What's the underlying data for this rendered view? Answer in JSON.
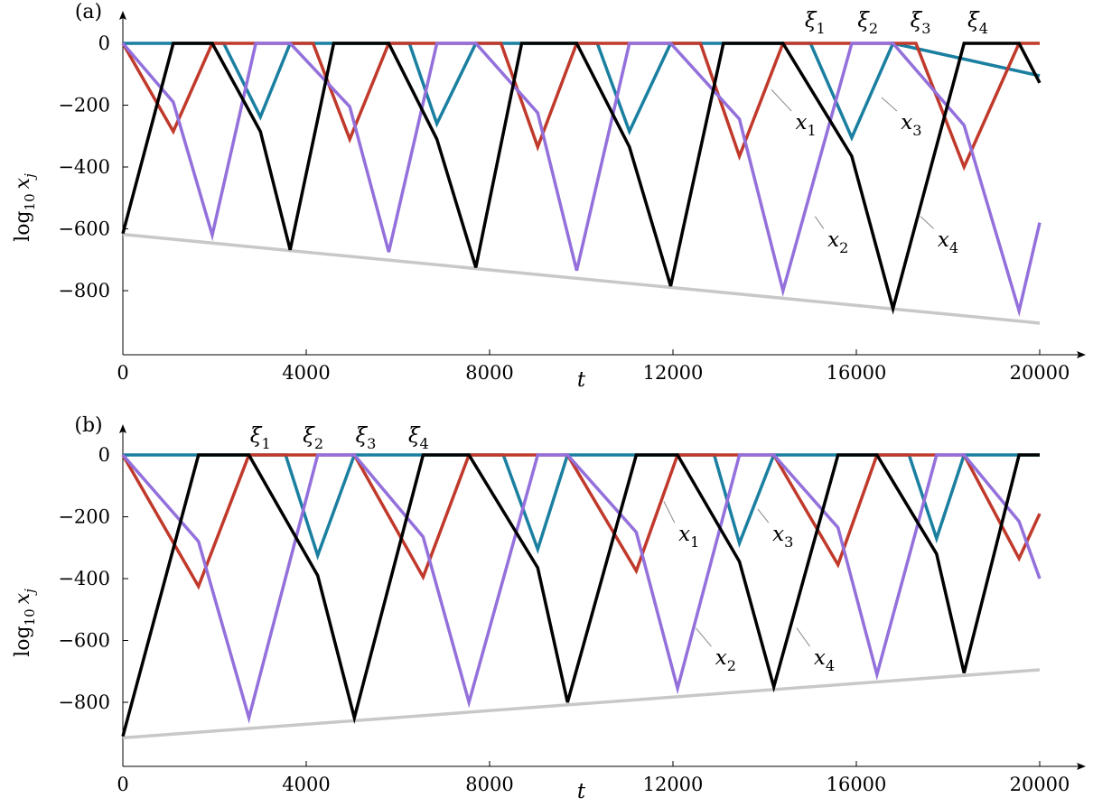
{
  "chart_data": [
    {
      "type": "line",
      "panel_label": "(a)",
      "xlabel": "t",
      "ylabel": "log10 x_j",
      "ylabel_parts": {
        "base": "log",
        "sub": "10",
        "var": "x",
        "varsub": "j"
      },
      "xlim": [
        0,
        20000
      ],
      "ylim": [
        -1000,
        50
      ],
      "xticks": [
        0,
        4000,
        8000,
        12000,
        16000,
        20000
      ],
      "yticks": [
        0,
        -200,
        -400,
        -600,
        -800
      ],
      "ytick_labels": [
        "0",
        "−200",
        "−400",
        "−600",
        "−800"
      ],
      "top_labels": [
        {
          "text": "ξ",
          "sub": "1",
          "x": 15100
        },
        {
          "text": "ξ",
          "sub": "2",
          "x": 16250
        },
        {
          "text": "ξ",
          "sub": "3",
          "x": 17400
        },
        {
          "text": "ξ",
          "sub": "4",
          "x": 18650
        }
      ],
      "annotations": [
        {
          "text": "x",
          "sub": "1",
          "at": [
            14150,
            -150
          ],
          "label": [
            14900,
            -260
          ]
        },
        {
          "text": "x",
          "sub": "3",
          "at": [
            16550,
            -175
          ],
          "label": [
            17200,
            -260
          ]
        },
        {
          "text": "x",
          "sub": "2",
          "at": [
            15100,
            -560
          ],
          "label": [
            15600,
            -640
          ]
        },
        {
          "text": "x",
          "sub": "4",
          "at": [
            17400,
            -560
          ],
          "label": [
            18000,
            -640
          ]
        }
      ],
      "series": [
        {
          "name": "x1",
          "color": "#c0392b",
          "x": [
            0,
            1100,
            1950,
            4150,
            4950,
            5800,
            8250,
            9050,
            9900,
            12600,
            13450,
            14400,
            17300,
            18350,
            19550,
            20000
          ],
          "y": [
            0,
            -285,
            0,
            0,
            -310,
            0,
            0,
            -335,
            0,
            0,
            -365,
            0,
            0,
            -400,
            0,
            0
          ]
        },
        {
          "name": "x2",
          "color": "#9370db",
          "x": [
            0,
            1100,
            1950,
            2900,
            3650,
            4950,
            5800,
            6850,
            7700,
            9050,
            9900,
            11050,
            11950,
            13450,
            14400,
            15900,
            16800,
            18350,
            19550,
            20000
          ],
          "y": [
            0,
            -190,
            -620,
            0,
            0,
            -205,
            -675,
            0,
            0,
            -225,
            -735,
            0,
            0,
            -245,
            -800,
            0,
            0,
            -265,
            -865,
            -580
          ]
        },
        {
          "name": "x3",
          "color": "#1a7fa0",
          "x": [
            0,
            2200,
            3000,
            3650,
            6250,
            6850,
            7700,
            10350,
            11050,
            11950,
            15000,
            15900,
            16800,
            20000
          ],
          "y": [
            0,
            0,
            -238,
            0,
            0,
            -260,
            0,
            0,
            -285,
            0,
            0,
            -305,
            0,
            -105
          ]
        },
        {
          "name": "x4",
          "color": "#000000",
          "x": [
            0,
            1100,
            1950,
            3000,
            3650,
            4600,
            5800,
            6850,
            7700,
            8700,
            9900,
            11050,
            11950,
            13100,
            14400,
            15900,
            16800,
            18350,
            19550,
            20000
          ],
          "y": [
            -615,
            0,
            0,
            -285,
            -668,
            0,
            0,
            -310,
            -725,
            0,
            0,
            -335,
            -785,
            0,
            0,
            -365,
            -858,
            0,
            0,
            -128
          ]
        }
      ],
      "envelope": {
        "color": "#c8c8c8",
        "x": [
          0,
          20000
        ],
        "y": [
          -618,
          -905
        ]
      }
    },
    {
      "type": "line",
      "panel_label": "(b)",
      "xlabel": "t",
      "ylabel": "log10 x_j",
      "ylabel_parts": {
        "base": "log",
        "sub": "10",
        "var": "x",
        "varsub": "j"
      },
      "xlim": [
        0,
        20000
      ],
      "ylim": [
        -1000,
        50
      ],
      "xticks": [
        0,
        4000,
        8000,
        12000,
        16000,
        20000
      ],
      "yticks": [
        0,
        -200,
        -400,
        -600,
        -800
      ],
      "ytick_labels": [
        "0",
        "−200",
        "−400",
        "−600",
        "−800"
      ],
      "top_labels": [
        {
          "text": "ξ",
          "sub": "1",
          "x": 3000
        },
        {
          "text": "ξ",
          "sub": "2",
          "x": 4150
        },
        {
          "text": "ξ",
          "sub": "3",
          "x": 5300
        },
        {
          "text": "ξ",
          "sub": "4",
          "x": 6450
        }
      ],
      "annotations": [
        {
          "text": "x",
          "sub": "1",
          "at": [
            11800,
            -150
          ],
          "label": [
            12350,
            -260
          ]
        },
        {
          "text": "x",
          "sub": "3",
          "at": [
            13850,
            -175
          ],
          "label": [
            14400,
            -260
          ]
        },
        {
          "text": "x",
          "sub": "2",
          "at": [
            12500,
            -560
          ],
          "label": [
            13150,
            -660
          ]
        },
        {
          "text": "x",
          "sub": "4",
          "at": [
            14700,
            -560
          ],
          "label": [
            15300,
            -660
          ]
        }
      ],
      "series": [
        {
          "name": "x1",
          "color": "#c0392b",
          "x": [
            0,
            1650,
            2750,
            5050,
            6550,
            7550,
            9700,
            11200,
            12100,
            14200,
            15600,
            16450,
            18350,
            19550,
            20000
          ],
          "y": [
            0,
            -425,
            0,
            0,
            -395,
            0,
            0,
            -375,
            0,
            0,
            -355,
            0,
            0,
            -335,
            -190
          ]
        },
        {
          "name": "x2",
          "color": "#9370db",
          "x": [
            0,
            1650,
            2750,
            4250,
            5050,
            6550,
            7550,
            9050,
            9700,
            11200,
            12100,
            13450,
            14200,
            15600,
            16450,
            17750,
            18350,
            19550,
            20000
          ],
          "y": [
            0,
            -280,
            -850,
            0,
            0,
            -265,
            -800,
            0,
            0,
            -250,
            -755,
            0,
            0,
            -235,
            -710,
            0,
            0,
            -215,
            -400
          ]
        },
        {
          "name": "x3",
          "color": "#1a7fa0",
          "x": [
            0,
            3550,
            4250,
            5050,
            8300,
            9050,
            9700,
            12900,
            13450,
            14200,
            17150,
            17750,
            18350,
            20000
          ],
          "y": [
            0,
            0,
            -325,
            0,
            0,
            -305,
            0,
            0,
            -285,
            0,
            0,
            -270,
            0,
            0
          ]
        },
        {
          "name": "x4",
          "color": "#000000",
          "x": [
            0,
            1650,
            2750,
            4250,
            5050,
            6550,
            7550,
            9050,
            9700,
            11200,
            12100,
            13450,
            14200,
            15600,
            16450,
            17750,
            18350,
            19550,
            20000
          ],
          "y": [
            -910,
            0,
            0,
            -390,
            -850,
            0,
            0,
            -365,
            -800,
            0,
            0,
            -345,
            -750,
            0,
            0,
            -320,
            -705,
            0,
            0
          ]
        }
      ],
      "envelope": {
        "color": "#c8c8c8",
        "x": [
          0,
          20000
        ],
        "y": [
          -915,
          -695
        ]
      }
    }
  ]
}
